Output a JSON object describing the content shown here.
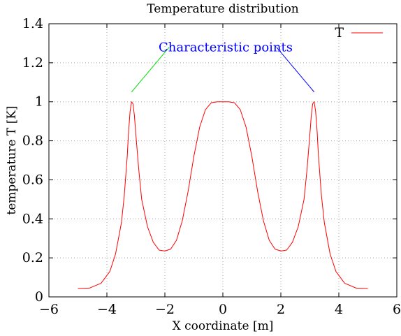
{
  "chart_data": {
    "type": "line",
    "title": "Temperature distribution",
    "xlabel": "X coordinate [m]",
    "ylabel": "temperature T [K]",
    "xlim": [
      -6,
      6
    ],
    "ylim": [
      0,
      1.4
    ],
    "xticks": [
      -6,
      -4,
      -2,
      0,
      2,
      4,
      6
    ],
    "yticks": [
      0,
      0.2,
      0.4,
      0.6,
      0.8,
      1,
      1.2,
      1.4
    ],
    "grid": true,
    "legend_position": "top-right",
    "series": [
      {
        "name": "T",
        "color": "#ff0000",
        "x": [
          -5.0,
          -4.6,
          -4.2,
          -3.9,
          -3.7,
          -3.5,
          -3.4,
          -3.3,
          -3.25,
          -3.2,
          -3.15,
          -3.1,
          -3.05,
          -3.0,
          -2.9,
          -2.8,
          -2.6,
          -2.4,
          -2.2,
          -2.0,
          -1.8,
          -1.6,
          -1.4,
          -1.2,
          -1.0,
          -0.8,
          -0.6,
          -0.4,
          -0.2,
          0.0,
          0.2,
          0.4,
          0.6,
          0.8,
          1.0,
          1.2,
          1.4,
          1.6,
          1.8,
          2.0,
          2.2,
          2.4,
          2.6,
          2.8,
          2.9,
          3.0,
          3.05,
          3.1,
          3.15,
          3.2,
          3.25,
          3.3,
          3.4,
          3.5,
          3.7,
          3.9,
          4.2,
          4.6,
          5.0
        ],
        "y": [
          0.043,
          0.045,
          0.07,
          0.13,
          0.22,
          0.38,
          0.52,
          0.72,
          0.85,
          0.95,
          1.0,
          0.99,
          0.93,
          0.83,
          0.65,
          0.5,
          0.36,
          0.28,
          0.24,
          0.235,
          0.245,
          0.29,
          0.39,
          0.54,
          0.72,
          0.87,
          0.96,
          0.995,
          1.0,
          1.0,
          1.0,
          0.995,
          0.96,
          0.87,
          0.72,
          0.54,
          0.39,
          0.29,
          0.245,
          0.235,
          0.24,
          0.28,
          0.36,
          0.5,
          0.65,
          0.83,
          0.93,
          0.99,
          1.0,
          0.95,
          0.85,
          0.72,
          0.52,
          0.38,
          0.22,
          0.13,
          0.07,
          0.045,
          0.043
        ]
      }
    ],
    "annotations": [
      {
        "text": "Characteristic points",
        "color": "#0000ff",
        "x": -2.0,
        "y": 1.28
      }
    ],
    "arrows": [
      {
        "from": [
          -1.85,
          1.28
        ],
        "to": [
          -3.15,
          1.05
        ],
        "color": "#00dd00"
      },
      {
        "from": [
          1.85,
          1.28
        ],
        "to": [
          3.15,
          1.05
        ],
        "color": "#0000ff"
      }
    ]
  }
}
